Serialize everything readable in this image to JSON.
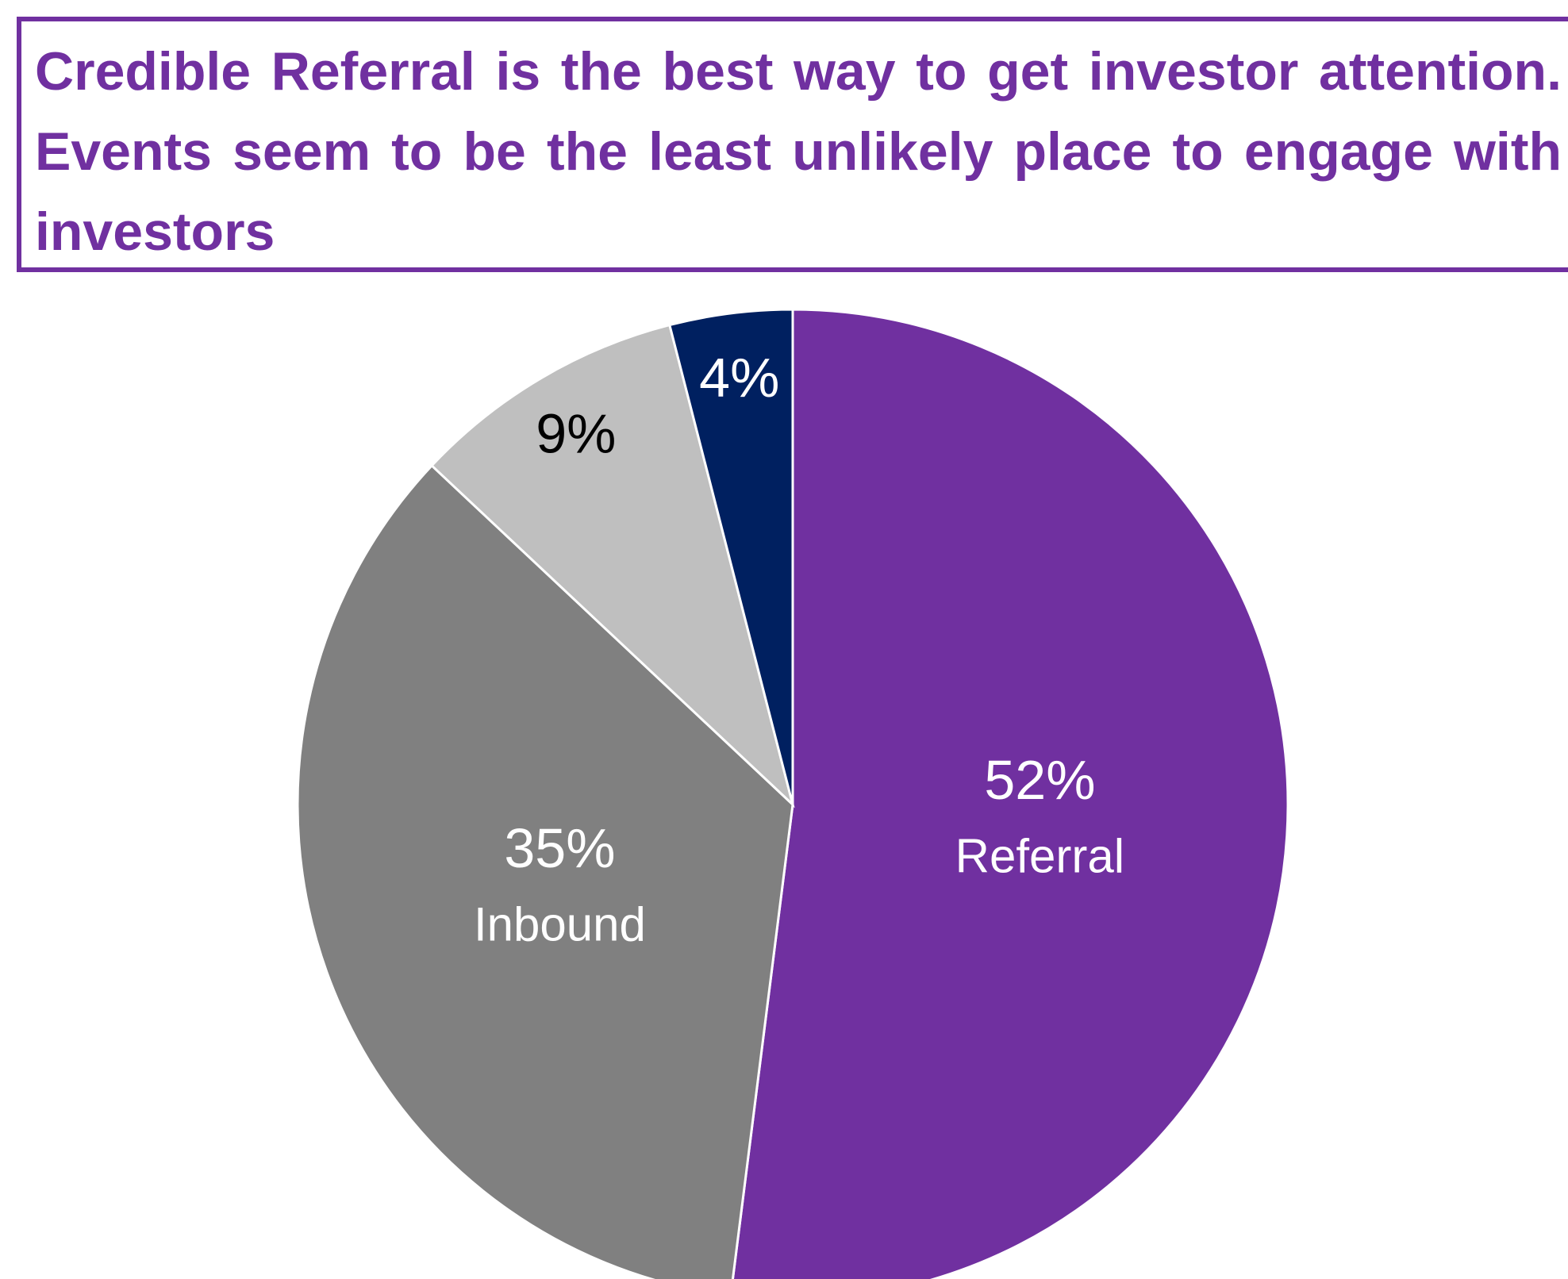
{
  "chart_data": {
    "type": "pie",
    "title": "Credible Referral is the best way to get investor attention. Events seem to be the least unlikely place to engage with investors",
    "categories": [
      "Referral",
      "Inbound",
      null,
      null
    ],
    "values": [
      52,
      35,
      9,
      4
    ],
    "value_labels": [
      "52%",
      "35%",
      "9%",
      "4%"
    ],
    "colors": [
      "#7030a0",
      "#808080",
      "#bfbfbf",
      "#002060"
    ],
    "label_colors": [
      "#ffffff",
      "#ffffff",
      "#000000",
      "#ffffff"
    ]
  }
}
